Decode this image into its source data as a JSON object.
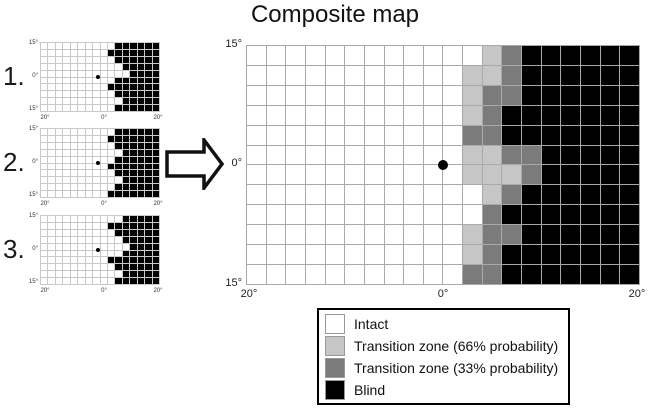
{
  "title": "Composite map",
  "colors": {
    "intact": "#ffffff",
    "transition66": "#c6c6c6",
    "transition33": "#7b7b7b",
    "blind": "#000000"
  },
  "cell_legend": {
    "W": "intact",
    "L": "transition66",
    "D": "transition33",
    "B": "blind"
  },
  "axis_labels": {
    "y_top": "15°",
    "y_mid": "0°",
    "y_bottom": "15°",
    "x_left": "20°",
    "x_mid": "0°",
    "x_right": "20°"
  },
  "small_maps": [
    {
      "label": "1.",
      "rows": [
        "WWWWWWWWWWBBBBBB",
        "WWWWWWWWWBBBBBBB",
        "WWWWWWWWWWBBBBBB",
        "WWWWWWWWWWWBBBBB",
        "WWWWWWWWWWWWBBBB",
        "WWWWWWWWWWBBBBBB",
        "WWWWWWWWWBBBBBBB",
        "WWWWWWWWWWBBBBBB",
        "WWWWWWWWWWWBBBBB",
        "WWWWWWWWWWBBBBBB"
      ]
    },
    {
      "label": "2.",
      "rows": [
        "WWWWWWWWWWBBBBBB",
        "WWWWWWWWWBBBBBBB",
        "WWWWWWWWWWBBBBBB",
        "WWWWWWWWWWWBBBBB",
        "WWWWWWWWWWBBBBBB",
        "WWWWWWWWWBBBBBBB",
        "WWWWWWWWWWBBBBBB",
        "WWWWWWWWWWWBBBBB",
        "WWWWWWWWWWBBBBBB",
        "WWWWWWWWWBBBBBBB"
      ]
    },
    {
      "label": "3.",
      "rows": [
        "WWWWWWWWWWWBBBBB",
        "WWWWWWWWWBBBBBBB",
        "WWWWWWWWWWBBBBBB",
        "WWWWWWWWWWWBBBBB",
        "WWWWWWWWWWWWBBBB",
        "WWWWWWWWWWWBBBBB",
        "WWWWWWWWWBBBBBBB",
        "WWWWWWWWWWBBBBBB",
        "WWWWWWWWWWWBBBBB",
        "WWWWWWWWWWBBBBBB"
      ]
    }
  ],
  "composite_map": {
    "rows": [
      "WWWWWWWWWWWWLDBBBBBB",
      "WWWWWWWWWWWLLDBBBBBB",
      "WWWWWWWWWWWLDDBBBBBB",
      "WWWWWWWWWWWLDBBBBBBB",
      "WWWWWWWWWWWDDBBBBBBB",
      "WWWWWWWWWWWLLDDBBBBB",
      "WWWWWWWWWWWLLLDBBBBB",
      "WWWWWWWWWWWWLDBBBBBB",
      "WWWWWWWWWWWWDBBBBBBB",
      "WWWWWWWWWWWLDDBBBBBB",
      "WWWWWWWWWWWLDBBBBBBB",
      "WWWWWWWWWWWDDBBBBBBB"
    ]
  },
  "legend": {
    "items": [
      {
        "key": "intact",
        "label": "Intact"
      },
      {
        "key": "transition66",
        "label": "Transition zone (66% probability)"
      },
      {
        "key": "transition33",
        "label": "Transition zone (33% probability)"
      },
      {
        "key": "blind",
        "label": "Blind"
      }
    ]
  }
}
